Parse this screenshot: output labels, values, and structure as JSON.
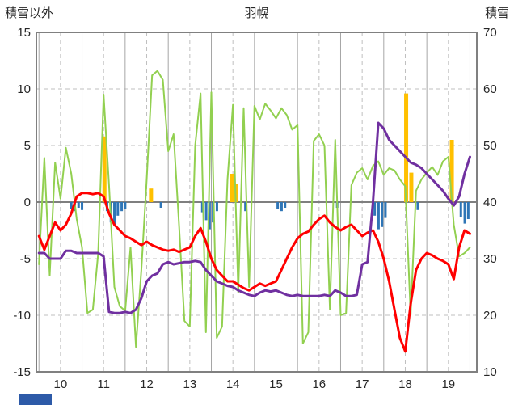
{
  "chart_data": {
    "type": "line",
    "title": "羽幌",
    "left_axis_label": "積雪以外",
    "right_axis_label": "積雪",
    "x_range": [
      9.44,
      19.66
    ],
    "x_start": 9.5,
    "x_step": 0.125,
    "left_ylim": [
      -15,
      15
    ],
    "right_ylim": [
      10,
      70
    ],
    "x_ticks": [
      10,
      11,
      12,
      13,
      14,
      15,
      16,
      17,
      18,
      19
    ],
    "left_ticks": [
      15,
      10,
      5,
      0,
      -5,
      -10,
      -15
    ],
    "right_ticks": [
      70,
      60,
      50,
      40,
      30,
      20,
      10
    ],
    "grid": {
      "v_solid": [
        9.5,
        10.5,
        11.5,
        12.5,
        13.5,
        14.5,
        15.5,
        16.5,
        17.5,
        18.5,
        19.5
      ],
      "v_dashed": [
        10,
        11,
        12,
        13,
        14,
        15,
        16,
        17,
        18,
        19
      ],
      "h_dashed": [
        10,
        5,
        -5,
        -10
      ],
      "dashed_color": "#bfbfbf",
      "solid_color": "#a6a6a6",
      "zero_color": "#7f7f7f",
      "border_color": "#808080"
    },
    "series": [
      {
        "name": "green-line",
        "color": "#92d050",
        "width": 2,
        "values": [
          -5.5,
          3.9,
          -6.5,
          3.5,
          0.3,
          4.8,
          2.5,
          -1.5,
          -4,
          -9.8,
          -9.5,
          -4.5,
          9.5,
          1.5,
          -7.5,
          -9.2,
          -9.6,
          -4,
          -12.8,
          -6,
          2,
          11.2,
          11.6,
          10.8,
          4.5,
          6,
          -2,
          -10.5,
          -11,
          5,
          9.6,
          -11.5,
          9.7,
          -12,
          -11,
          2,
          8.6,
          -8,
          8.3,
          -7.5,
          8.5,
          7.3,
          8.7,
          8.1,
          7.4,
          8.3,
          7.7,
          6.4,
          6.8,
          -12.5,
          -11.5,
          5.4,
          6,
          5,
          -9.5,
          5.5,
          -10,
          -9.8,
          1.5,
          2.6,
          3,
          2,
          3.2,
          3.6,
          2.4,
          3,
          2.8,
          2,
          1.4,
          -10,
          1,
          2,
          2.6,
          3.1,
          2.4,
          3.6,
          4,
          -2,
          -4.8,
          -4.5,
          -4
        ]
      },
      {
        "name": "red-line",
        "color": "#ff0000",
        "width": 3,
        "values": [
          -3,
          -4.2,
          -3,
          -1.8,
          -2.5,
          -2,
          -1,
          0.5,
          0.8,
          0.8,
          0.7,
          0.8,
          0.5,
          -1,
          -2,
          -2.5,
          -3,
          -3.2,
          -3.5,
          -3.8,
          -3.5,
          -3.8,
          -4,
          -4.2,
          -4.3,
          -4.2,
          -4.4,
          -4.2,
          -4,
          -3,
          -2.3,
          -3.5,
          -5,
          -6,
          -6.5,
          -7,
          -7,
          -7.3,
          -7.6,
          -7.8,
          -7.5,
          -7.2,
          -7.4,
          -7.2,
          -7,
          -6,
          -5,
          -4,
          -3.2,
          -2.8,
          -2.6,
          -2,
          -1.5,
          -1.2,
          -1.8,
          -2.2,
          -2.5,
          -2.2,
          -2,
          -2.5,
          -3,
          -2.7,
          -2.5,
          -3.5,
          -5,
          -7,
          -9.5,
          -12,
          -13.2,
          -9,
          -6,
          -5,
          -4.5,
          -4.7,
          -5,
          -5.2,
          -5.5,
          -6.8,
          -4,
          -2.5,
          -2.8
        ]
      },
      {
        "name": "purple-line",
        "color": "#7030a0",
        "width": 3,
        "values": [
          -4.5,
          -4.5,
          -5,
          -5,
          -5,
          -4.3,
          -4.3,
          -4.5,
          -4.5,
          -4.5,
          -4.5,
          -4.5,
          -4.8,
          -9.7,
          -9.8,
          -9.8,
          -9.7,
          -9.8,
          -9.5,
          -8.5,
          -7,
          -6.5,
          -6.3,
          -5.5,
          -5.3,
          -5.5,
          -5.4,
          -5.3,
          -5.3,
          -5.2,
          -5.3,
          -6,
          -6.5,
          -7,
          -7.2,
          -7.4,
          -7.5,
          -7.8,
          -8,
          -8.2,
          -8.3,
          -8,
          -7.8,
          -7.9,
          -7.8,
          -8,
          -8.2,
          -8.3,
          -8.2,
          -8.3,
          -8.3,
          -8.3,
          -8.3,
          -8.2,
          -8.3,
          -7.8,
          -8,
          -8.3,
          -8.3,
          -8.2,
          -5.5,
          -5.3,
          0,
          7,
          6.5,
          5.5,
          5,
          4.5,
          4,
          3.5,
          3.3,
          3,
          2.5,
          2,
          1.5,
          1,
          0.3,
          -0.3,
          0.5,
          2.5,
          4
        ]
      }
    ],
    "bars": [
      {
        "name": "orange-bar",
        "color": "#ffc000",
        "width": 5,
        "points": [
          {
            "x": 11.02,
            "v": 5.8
          },
          {
            "x": 12.1,
            "v": 1.2
          },
          {
            "x": 13.98,
            "v": 2.5
          },
          {
            "x": 14.08,
            "v": 1.6
          },
          {
            "x": 18.02,
            "v": 9.6
          },
          {
            "x": 18.14,
            "v": 2.6
          },
          {
            "x": 19.08,
            "v": 5.5
          }
        ]
      },
      {
        "name": "blue-bar",
        "color": "#2e75b6",
        "width": 3,
        "points": [
          {
            "x": 10.25,
            "v": -0.6
          },
          {
            "x": 10.33,
            "v": -0.8
          },
          {
            "x": 10.42,
            "v": -0.5
          },
          {
            "x": 10.5,
            "v": -0.7
          },
          {
            "x": 11.08,
            "v": -0.8
          },
          {
            "x": 11.17,
            "v": -1.8
          },
          {
            "x": 11.25,
            "v": -2
          },
          {
            "x": 11.33,
            "v": -1.2
          },
          {
            "x": 11.42,
            "v": -0.8
          },
          {
            "x": 11.5,
            "v": -0.6
          },
          {
            "x": 12.33,
            "v": -0.5
          },
          {
            "x": 13.29,
            "v": -0.9
          },
          {
            "x": 13.38,
            "v": -1.6
          },
          {
            "x": 13.46,
            "v": -2.4
          },
          {
            "x": 13.54,
            "v": -1.8
          },
          {
            "x": 13.63,
            "v": -0.8
          },
          {
            "x": 14.29,
            "v": -0.8
          },
          {
            "x": 15.04,
            "v": -0.6
          },
          {
            "x": 15.13,
            "v": -0.8
          },
          {
            "x": 15.21,
            "v": -0.5
          },
          {
            "x": 16.42,
            "v": -0.5
          },
          {
            "x": 17.29,
            "v": -1.2
          },
          {
            "x": 17.38,
            "v": -2.4
          },
          {
            "x": 17.46,
            "v": -2.2
          },
          {
            "x": 17.54,
            "v": -1.4
          },
          {
            "x": 18.29,
            "v": -0.7
          },
          {
            "x": 19.29,
            "v": -1.3
          },
          {
            "x": 19.38,
            "v": -1.9
          },
          {
            "x": 19.46,
            "v": -1.5
          }
        ]
      }
    ]
  },
  "footer": {
    "blue_fragment_color": "#2d5aa8"
  }
}
